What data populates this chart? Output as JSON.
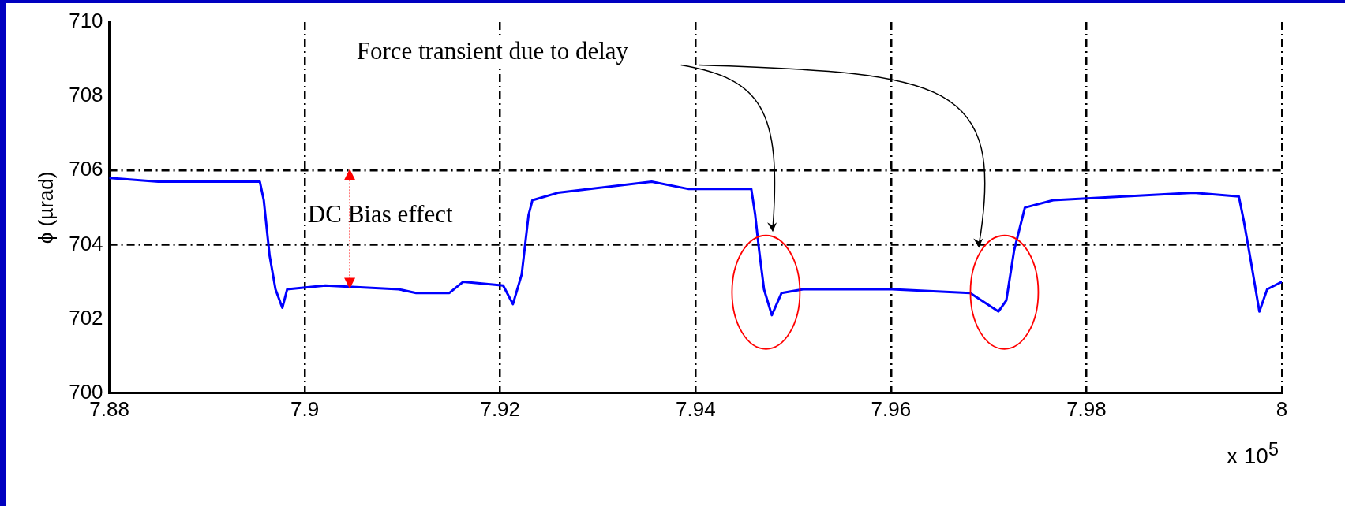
{
  "chart_data": {
    "type": "line",
    "ylabel": "ϕ (µrad)",
    "xlabel": "x 10$^{5}$",
    "xlim": [
      7.88,
      8
    ],
    "xticks": [
      7.88,
      7.9,
      7.92,
      7.94,
      7.96,
      7.98,
      8
    ],
    "ylim": [
      700,
      710
    ],
    "yticks": [
      700,
      702,
      704,
      706,
      708,
      710
    ],
    "grid": "x",
    "legend": false,
    "marker": "none",
    "line_style": "solid",
    "ref_lines": [
      {
        "axis": "y",
        "value": 704,
        "color": "#000000",
        "line_style": "dashed"
      },
      {
        "axis": "y",
        "value": 706,
        "color": "#000000",
        "line_style": "dashed"
      }
    ],
    "annotations": [
      "Force transient due to delay",
      "DC Bias effect"
    ],
    "series": [
      {
        "color": "#0000ff",
        "x": [
          7.88,
          7.885,
          7.89,
          7.8954,
          7.8958,
          7.8964,
          7.897,
          7.8977,
          7.8982,
          7.9021,
          7.9096,
          7.9114,
          7.9148,
          7.9162,
          7.9203,
          7.9213,
          7.9222,
          7.9229,
          7.9233,
          7.9259,
          7.9355,
          7.9393,
          7.9457,
          7.9461,
          7.9465,
          7.947,
          7.9478,
          7.9488,
          7.951,
          7.9601,
          7.9681,
          7.971,
          7.9718,
          7.9726,
          7.9737,
          7.9766,
          7.991,
          7.9956,
          7.9961,
          7.9968,
          7.9977,
          7.9985,
          8
        ],
        "values": [
          705.8,
          705.7,
          705.7,
          705.7,
          705.2,
          703.7,
          702.8,
          702.3,
          702.8,
          702.9,
          702.8,
          702.7,
          702.7,
          703.0,
          702.9,
          702.4,
          703.2,
          704.8,
          705.2,
          705.4,
          705.7,
          705.5,
          705.5,
          704.8,
          703.85,
          702.8,
          702.1,
          702.7,
          702.8,
          702.8,
          702.7,
          702.2,
          702.5,
          703.85,
          705.0,
          705.2,
          705.4,
          705.3,
          704.65,
          703.6,
          702.2,
          702.8,
          703.0
        ]
      }
    ]
  }
}
